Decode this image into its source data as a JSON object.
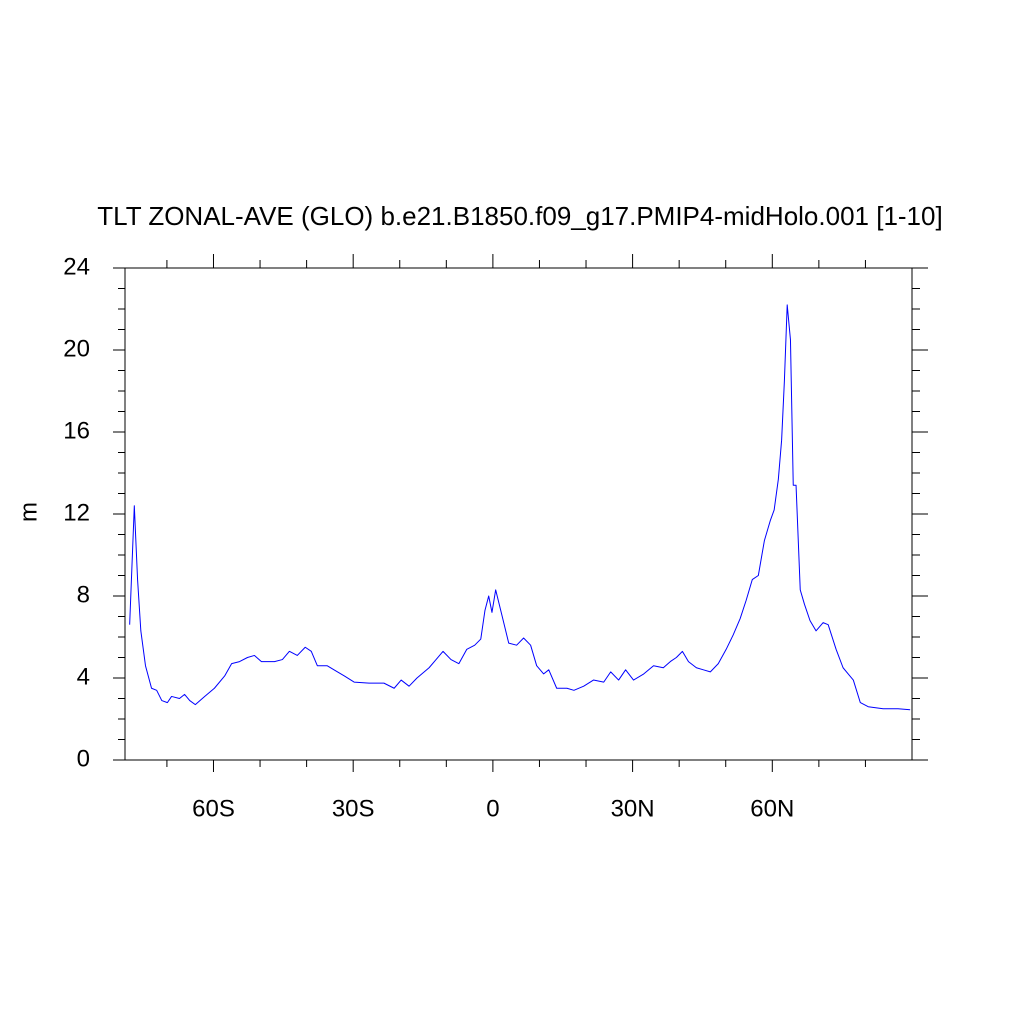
{
  "chart_data": {
    "type": "line",
    "title": "TLT ZONAL-AVE (GLO) b.e21.B1850.f09_g17.PMIP4-midHolo.001 [1-10]",
    "ylabel": "m",
    "color": "#0000ff",
    "xlim": [
      -79,
      90
    ],
    "ylim": [
      0,
      24
    ],
    "xticks": [
      {
        "value": -60,
        "label": "60S"
      },
      {
        "value": -30,
        "label": "30S"
      },
      0,
      {
        "value": 30,
        "label": "30N"
      },
      {
        "value": 60,
        "label": "60N"
      }
    ],
    "xminorticks": [
      -70,
      -50,
      -40,
      -20,
      -10,
      10,
      20,
      40,
      50,
      70,
      80
    ],
    "yticks": [
      0,
      4,
      8,
      12,
      16,
      20,
      24
    ],
    "yminorticks": [
      1,
      2,
      3,
      5,
      6,
      7,
      9,
      10,
      11,
      13,
      14,
      15,
      17,
      18,
      19,
      21,
      22,
      23
    ],
    "x": [
      -78,
      -77,
      -76.3,
      -75.6,
      -74.6,
      -73.3,
      -72.2,
      -71.1,
      -69.9,
      -69,
      -67.3,
      -66.2,
      -65.1,
      -63.9,
      -61.9,
      -59.8,
      -57.6,
      -56.1,
      -54.4,
      -52.7,
      -51.2,
      -49.7,
      -46.9,
      -45.2,
      -43.7,
      -42,
      -40.3,
      -39,
      -37.7,
      -35.6,
      -33.4,
      -31.9,
      -29.8,
      -26.6,
      -23.4,
      -21.2,
      -19.7,
      -18,
      -16.3,
      -13.7,
      -12.2,
      -10.7,
      -9,
      -7.3,
      -5.6,
      -3.9,
      -2.6,
      -1.7,
      -0.9,
      -0.2,
      0.6,
      1.9,
      3.4,
      5.1,
      6.6,
      8.1,
      9.4,
      10.9,
      12,
      13.7,
      15.9,
      17.4,
      19.5,
      21.6,
      23.8,
      25.3,
      27,
      28.5,
      30.2,
      32.4,
      34.5,
      36.6,
      38.1,
      39.4,
      40.7,
      42,
      43.7,
      45.2,
      46.7,
      48.4,
      50.1,
      51.6,
      53.1,
      54.4,
      55.7,
      57,
      58.3,
      59.6,
      60.4,
      61.3,
      62,
      62.6,
      63.2,
      63.9,
      64.5,
      65.1,
      66,
      66.9,
      68.1,
      69.4,
      70.9,
      72,
      73.7,
      75.2,
      76.3,
      77.4,
      78.9,
      80.6,
      83.8,
      87,
      89.6
    ],
    "values": [
      6.6,
      12.4,
      8.8,
      6.3,
      4.6,
      3.5,
      3.4,
      2.9,
      2.8,
      3.1,
      3.0,
      3.2,
      2.9,
      2.7,
      3.1,
      3.5,
      4.1,
      4.7,
      4.8,
      5.0,
      5.1,
      4.8,
      4.8,
      4.9,
      5.3,
      5.1,
      5.5,
      5.3,
      4.6,
      4.6,
      4.3,
      4.1,
      3.8,
      3.75,
      3.75,
      3.5,
      3.9,
      3.6,
      4.0,
      4.5,
      4.9,
      5.3,
      4.9,
      4.7,
      5.4,
      5.6,
      5.9,
      7.3,
      8.0,
      7.2,
      8.3,
      7.1,
      5.7,
      5.6,
      5.95,
      5.6,
      4.6,
      4.2,
      4.4,
      3.5,
      3.5,
      3.4,
      3.6,
      3.9,
      3.8,
      4.3,
      3.9,
      4.4,
      3.9,
      4.2,
      4.6,
      4.5,
      4.8,
      5.0,
      5.3,
      4.8,
      4.5,
      4.4,
      4.3,
      4.7,
      5.4,
      6.1,
      6.9,
      7.8,
      8.8,
      9.0,
      10.7,
      11.7,
      12.2,
      13.7,
      15.6,
      18.5,
      22.2,
      20.5,
      13.4,
      13.4,
      8.3,
      7.6,
      6.8,
      6.3,
      6.7,
      6.6,
      5.4,
      4.5,
      4.2,
      3.9,
      2.8,
      2.6,
      2.5,
      2.5,
      2.45
    ]
  }
}
